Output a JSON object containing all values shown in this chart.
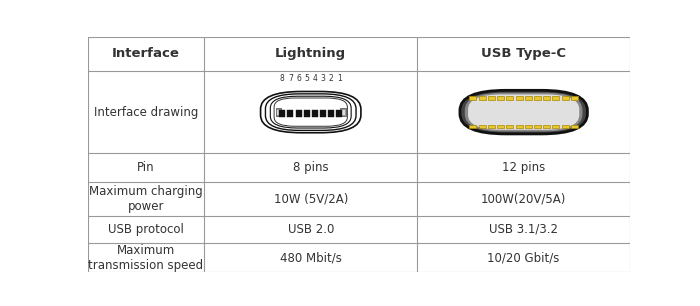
{
  "title_row": [
    "Interface",
    "Lightning",
    "USB Type-C"
  ],
  "rows": [
    [
      "Interface drawing",
      "",
      ""
    ],
    [
      "Pin",
      "8 pins",
      "12 pins"
    ],
    [
      "Maximum charging\npower",
      "10W (5V/2A)",
      "100W(20V/5A)"
    ],
    [
      "USB protocol",
      "USB 2.0",
      "USB 3.1/3.2"
    ],
    [
      "Maximum\ntransmission speed",
      "480 Mbit/s",
      "10/20 Gbit/s"
    ]
  ],
  "grid_color": "#999999",
  "text_color": "#333333",
  "font_size": 8.5,
  "header_font_size": 9.5,
  "background": "#ffffff",
  "lightning_pin_labels": [
    "8",
    "7",
    "6",
    "5",
    "4",
    "3",
    "2",
    "1"
  ],
  "col_boundaries": [
    0.0,
    0.215,
    0.608,
    1.0
  ],
  "row_tops": [
    1.0,
    0.855,
    0.505,
    0.385,
    0.24,
    0.125,
    0.0
  ]
}
